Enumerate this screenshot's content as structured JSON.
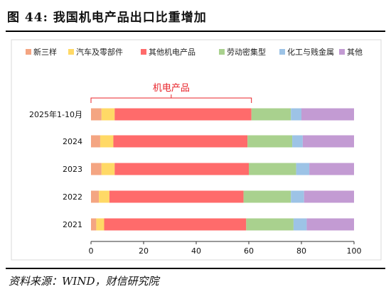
{
  "figure": {
    "title": "图 44:  我国机电产品出口比重增加",
    "source": "资料来源：WIND，财信研究院"
  },
  "chart_data": {
    "type": "bar",
    "orientation": "horizontal",
    "stacked": true,
    "categories": [
      "2025年1-10月",
      "2024",
      "2023",
      "2022",
      "2021"
    ],
    "series": [
      {
        "name": "新三样",
        "color": "#f4a582",
        "values": [
          4,
          3.5,
          4,
          3,
          2
        ]
      },
      {
        "name": "汽车及零部件",
        "color": "#ffd966",
        "values": [
          5,
          5,
          5,
          4,
          3
        ]
      },
      {
        "name": "其他机电产品",
        "color": "#ff6b6b",
        "values": [
          52,
          51,
          51,
          51,
          54
        ]
      },
      {
        "name": "劳动密集型",
        "color": "#a9d18e",
        "values": [
          15,
          17,
          18,
          18,
          18
        ]
      },
      {
        "name": "化工与贱金属",
        "color": "#9dc3e6",
        "values": [
          4,
          4,
          5,
          5,
          5
        ]
      },
      {
        "name": "其他",
        "color": "#c39bd3",
        "values": [
          20,
          19.5,
          17,
          19,
          18
        ]
      }
    ],
    "xlim": [
      0,
      100
    ],
    "xticks": [
      0,
      20,
      40,
      60,
      80,
      100
    ],
    "xlabel": "",
    "ylabel": "",
    "legend_position": "top",
    "annotation": {
      "text": "机电产品",
      "category": "2025年1-10月",
      "from": 0,
      "to": 61,
      "color": "#e8232a"
    }
  }
}
